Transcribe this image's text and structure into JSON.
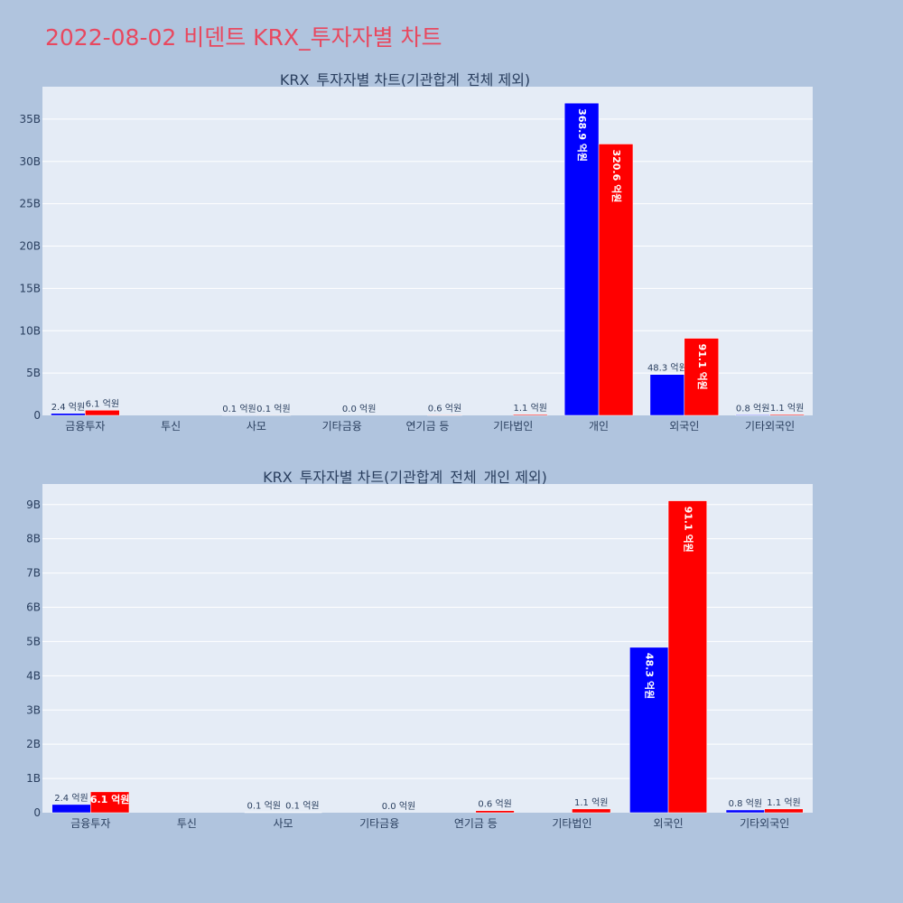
{
  "page": {
    "title": "2022-08-02 비덴트 KRX_투자자별 차트"
  },
  "colors": {
    "background": "#b0c4de",
    "plot_bg": "#e5ecf6",
    "title": "#e8485f",
    "series_buy": "#0000ff",
    "series_sell": "#ff0000",
    "text": "#2a3f5f"
  },
  "chart_data": [
    {
      "type": "bar",
      "title": "KRX_투자자별 차트(기관합계_전체 제외)",
      "categories": [
        "금융투자",
        "투신",
        "사모",
        "기타금융",
        "연기금 등",
        "기타법인",
        "개인",
        "외국인",
        "기타외국인"
      ],
      "series": [
        {
          "values": [
            240000000,
            0,
            10000000,
            0,
            0,
            0,
            36890000000,
            4830000000,
            80000000
          ],
          "labels": [
            "2.4 억원",
            "",
            "0.1 억원",
            "",
            "",
            "",
            "368.9 억원",
            "48.3 억원",
            "0.8 억원"
          ],
          "color": "#0000ff"
        },
        {
          "values": [
            610000000,
            0,
            10000000,
            0,
            60000000,
            110000000,
            32060000000,
            9110000000,
            110000000
          ],
          "labels": [
            "6.1 억원",
            "",
            "0.1 억원",
            "0.0 억원",
            "0.6 억원",
            "1.1 억원",
            "320.6 억원",
            "91.1 억원",
            "1.1 억원"
          ],
          "color": "#ff0000"
        }
      ],
      "yticks": [
        0,
        5000000000,
        10000000000,
        15000000000,
        20000000000,
        25000000000,
        30000000000,
        35000000000
      ],
      "ytick_labels": [
        "0",
        "5B",
        "10B",
        "15B",
        "20B",
        "25B",
        "30B",
        "35B"
      ],
      "ylim": [
        0,
        38830000000
      ],
      "grid": true
    },
    {
      "type": "bar",
      "title": "KRX_투자자별 차트(기관합계_전체_개인 제외)",
      "categories": [
        "금융투자",
        "투신",
        "사모",
        "기타금융",
        "연기금 등",
        "기타법인",
        "외국인",
        "기타외국인"
      ],
      "series": [
        {
          "values": [
            240000000,
            0,
            10000000,
            0,
            0,
            0,
            4830000000,
            80000000
          ],
          "labels": [
            "2.4 억원",
            "",
            "0.1 억원",
            "",
            "",
            "",
            "48.3 억원",
            "0.8 억원"
          ],
          "color": "#0000ff"
        },
        {
          "values": [
            610000000,
            0,
            10000000,
            0,
            60000000,
            110000000,
            9110000000,
            110000000
          ],
          "labels": [
            "6.1 억원",
            "",
            "0.1 억원",
            "0.0 억원",
            "0.6 억원",
            "1.1 억원",
            "91.1 억원",
            "1.1 억원"
          ],
          "color": "#ff0000"
        }
      ],
      "yticks": [
        0,
        1000000000,
        2000000000,
        3000000000,
        4000000000,
        5000000000,
        6000000000,
        7000000000,
        8000000000,
        9000000000
      ],
      "ytick_labels": [
        "0",
        "1B",
        "2B",
        "3B",
        "4B",
        "5B",
        "6B",
        "7B",
        "8B",
        "9B"
      ],
      "ylim": [
        0,
        9600000000
      ],
      "grid": true
    }
  ]
}
